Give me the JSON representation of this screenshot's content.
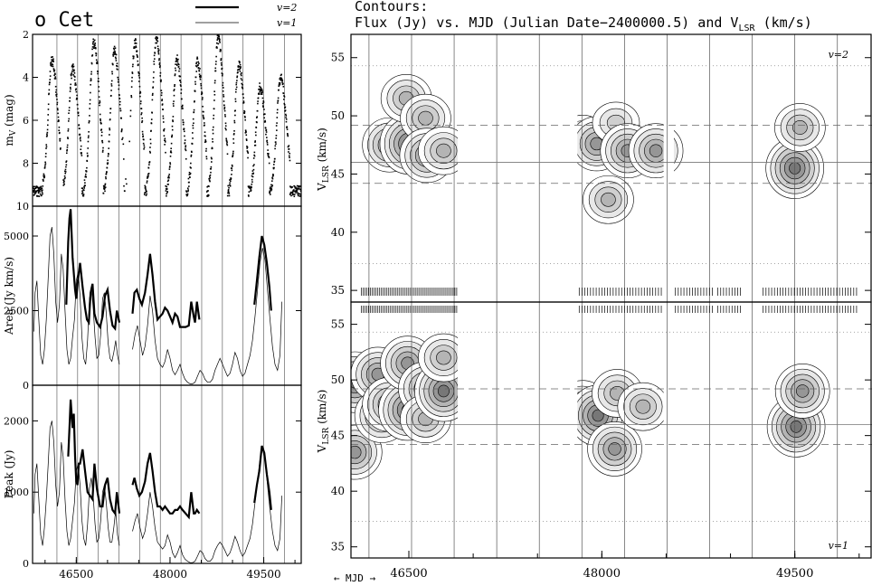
{
  "figure": {
    "star_name": "o Cet",
    "legend": [
      {
        "label": "v=2",
        "style": "thick"
      },
      {
        "label": "v=1",
        "style": "thin"
      }
    ],
    "right_title_line1": "Contours:",
    "right_title_line2": "Flux (Jy) vs. MJD (Julian  Date−2400000.5) and V",
    "right_title_sub": "LSR",
    "right_title_tail": " (km/s)",
    "mjd_label": "← MJD →",
    "panel_top_tag": "v=2",
    "panel_bottom_tag": "v=1"
  },
  "chart_data": [
    {
      "type": "scatter",
      "panel": "optical light curve",
      "ylabel": "m_V (mag)",
      "ylim": [
        10,
        2
      ],
      "yticks": [
        2,
        4,
        6,
        8,
        10
      ],
      "xlim": [
        45800,
        50100
      ],
      "xticks": [
        46500,
        48000,
        49500
      ],
      "maxima": [
        {
          "mjd": 46110,
          "mag": 3.2
        },
        {
          "mjd": 46440,
          "mag": 3.6
        },
        {
          "mjd": 46780,
          "mag": 2.4
        },
        {
          "mjd": 47110,
          "mag": 2.8
        },
        {
          "mjd": 47440,
          "mag": 2.4
        },
        {
          "mjd": 47780,
          "mag": 2.2
        },
        {
          "mjd": 48110,
          "mag": 3.2
        },
        {
          "mjd": 48440,
          "mag": 3.3
        },
        {
          "mjd": 48770,
          "mag": 2.2
        },
        {
          "mjd": 49100,
          "mag": 3.4
        },
        {
          "mjd": 49440,
          "mag": 4.5
        },
        {
          "mjd": 49770,
          "mag": 4.0
        }
      ],
      "minimum_mag": 9.3
    },
    {
      "type": "line",
      "panel": "integrated area",
      "ylabel": "Area (Jy km/s)",
      "ylim": [
        0,
        6000
      ],
      "yticks": [
        0,
        2500,
        5000
      ],
      "xlim": [
        45800,
        50100
      ],
      "series": [
        {
          "name": "v=2",
          "style": "thick",
          "x": [
            46340,
            46370,
            46390,
            46410,
            46440,
            46480,
            46500,
            46520,
            46560,
            46600,
            46640,
            46670,
            46700,
            46730,
            46760,
            46790,
            46830,
            46880,
            46920,
            46960,
            47000,
            47040,
            47080,
            47120,
            47150,
            47190
          ],
          "y": [
            2700,
            4800,
            5600,
            5900,
            4300,
            3200,
            2900,
            3400,
            4100,
            3300,
            2600,
            2200,
            2100,
            3100,
            3400,
            2400,
            2100,
            1950,
            2300,
            3000,
            3200,
            2500,
            2000,
            1900,
            2500,
            2100
          ]
        },
        {
          "name": "v=2",
          "style": "thick",
          "x": [
            47400,
            47430,
            47470,
            47510,
            47550,
            47600,
            47640,
            47680,
            47720,
            47760,
            47800,
            47840,
            47880,
            47920,
            47960,
            48000,
            48040,
            48080,
            48120,
            48160,
            48200,
            48250,
            48300,
            48340,
            48380,
            48400,
            48430,
            48470
          ],
          "y": [
            2400,
            3100,
            3200,
            2900,
            2700,
            3100,
            3700,
            4400,
            3700,
            2800,
            2200,
            2300,
            2400,
            2600,
            2500,
            2300,
            2100,
            2400,
            2300,
            1950,
            1950,
            1950,
            2000,
            2800,
            2300,
            2100,
            2800,
            2200
          ]
        },
        {
          "name": "v=2",
          "style": "thick",
          "x": [
            49350,
            49390,
            49430,
            49470,
            49510,
            49550,
            49590,
            49620
          ],
          "y": [
            2700,
            3500,
            4300,
            5000,
            4700,
            4100,
            3300,
            2500
          ]
        },
        {
          "name": "v=1",
          "style": "thin",
          "x": [
            45820,
            45840,
            45870,
            45900,
            45930,
            45960,
            45990,
            46020,
            46050,
            46080,
            46110,
            46140,
            46170,
            46200,
            46230,
            46260,
            46290,
            46320,
            46350,
            46380,
            46410,
            46440,
            46470,
            46500,
            46530,
            46560,
            46590,
            46620,
            46650,
            46680,
            46710,
            46740,
            46770,
            46800,
            46830,
            46860,
            46890,
            46920,
            46950,
            46980,
            47010,
            47040,
            47070,
            47100,
            47130,
            47160,
            47190
          ],
          "y": [
            1800,
            3100,
            3500,
            2200,
            1000,
            700,
            1200,
            2200,
            3600,
            5000,
            5300,
            4400,
            2800,
            2100,
            2700,
            4400,
            3900,
            2500,
            1200,
            700,
            900,
            1600,
            2200,
            3500,
            3800,
            3000,
            1600,
            900,
            700,
            1500,
            2900,
            3300,
            2600,
            1600,
            900,
            1000,
            1700,
            2900,
            3100,
            2400,
            1400,
            900,
            800,
            1100,
            1500,
            1000,
            700
          ]
        },
        {
          "name": "v=1",
          "style": "thin",
          "x": [
            47400,
            47440,
            47480,
            47520,
            47560,
            47600,
            47640,
            47680,
            47720,
            47760,
            47800,
            47840,
            47880,
            47920,
            47960,
            48000,
            48040,
            48080,
            48120,
            48160,
            48200,
            48240,
            48280,
            48320,
            48360,
            48400,
            48440,
            48480,
            48520,
            48560,
            48600,
            48640,
            48680,
            48720,
            48760,
            48800,
            48840,
            48880,
            48920,
            48960,
            49000,
            49040,
            49080,
            49120,
            49160,
            49200,
            49240,
            49280,
            49320,
            49360,
            49400,
            49440,
            49480,
            49520,
            49560,
            49600,
            49640,
            49680,
            49720,
            49760,
            49790
          ],
          "y": [
            1200,
            1700,
            2000,
            1500,
            1000,
            1300,
            2000,
            3000,
            2500,
            1500,
            900,
            700,
            600,
            800,
            1200,
            900,
            500,
            350,
            500,
            700,
            400,
            200,
            100,
            50,
            50,
            100,
            300,
            500,
            400,
            200,
            100,
            100,
            200,
            500,
            700,
            900,
            700,
            500,
            300,
            400,
            700,
            1100,
            900,
            500,
            300,
            400,
            700,
            1000,
            1500,
            2300,
            3200,
            4100,
            4600,
            4200,
            3200,
            2200,
            1300,
            700,
            500,
            1000,
            2800
          ]
        }
      ]
    },
    {
      "type": "line",
      "panel": "peak flux",
      "ylabel": "Peak (Jy)",
      "ylim": [
        0,
        2500
      ],
      "yticks": [
        0,
        1000,
        2000
      ],
      "xlim": [
        45800,
        50100
      ],
      "series": [
        {
          "name": "v=2",
          "style": "thick",
          "x": [
            46370,
            46390,
            46410,
            46440,
            46460,
            46480,
            46500,
            46520,
            46540,
            46560,
            46600,
            46640,
            46680,
            46720,
            46760,
            46790,
            46830,
            46880,
            46920,
            46960,
            47000,
            47040,
            47080,
            47120,
            47150,
            47190
          ],
          "y": [
            1500,
            1900,
            2300,
            1900,
            2100,
            1500,
            1150,
            1100,
            1400,
            1400,
            1600,
            1300,
            1000,
            950,
            900,
            1400,
            1050,
            800,
            800,
            1100,
            1200,
            900,
            750,
            700,
            1000,
            700
          ]
        },
        {
          "name": "v=2",
          "style": "thick",
          "x": [
            47400,
            47430,
            47470,
            47510,
            47550,
            47600,
            47640,
            47680,
            47720,
            47760,
            47800,
            47840,
            47880,
            47920,
            47960,
            48000,
            48040,
            48080,
            48120,
            48160,
            48200,
            48250,
            48300,
            48340,
            48380,
            48400,
            48430,
            48470
          ],
          "y": [
            1100,
            1200,
            1050,
            950,
            1000,
            1150,
            1400,
            1550,
            1300,
            1000,
            800,
            800,
            750,
            800,
            750,
            700,
            700,
            750,
            750,
            800,
            750,
            700,
            650,
            1000,
            700,
            700,
            750,
            700
          ]
        },
        {
          "name": "v=2",
          "style": "thick",
          "x": [
            49350,
            49390,
            49430,
            49470,
            49510,
            49550,
            49590,
            49620
          ],
          "y": [
            850,
            1100,
            1300,
            1650,
            1550,
            1250,
            1000,
            750
          ]
        },
        {
          "name": "v=1",
          "style": "thin",
          "x": [
            45820,
            45840,
            45870,
            45900,
            45930,
            45960,
            45990,
            46020,
            46050,
            46080,
            46110,
            46140,
            46170,
            46200,
            46230,
            46260,
            46290,
            46320,
            46350,
            46380,
            46410,
            46440,
            46470,
            46500,
            46530,
            46560,
            46590,
            46620,
            46650,
            46680,
            46710,
            46740,
            46770,
            46800,
            46830,
            46860,
            46890,
            46920,
            46950,
            46980,
            47010,
            47040,
            47070,
            47100,
            47130,
            47160,
            47190
          ],
          "y": [
            700,
            1250,
            1400,
            900,
            400,
            250,
            500,
            900,
            1400,
            1900,
            2000,
            1700,
            1100,
            800,
            1000,
            1700,
            1500,
            900,
            450,
            250,
            350,
            600,
            850,
            1300,
            1400,
            1100,
            600,
            350,
            250,
            550,
            1050,
            1200,
            950,
            550,
            300,
            350,
            600,
            1000,
            1100,
            850,
            500,
            300,
            300,
            500,
            750,
            400,
            250
          ]
        },
        {
          "name": "v=1",
          "style": "thin",
          "x": [
            47400,
            47440,
            47480,
            47520,
            47560,
            47600,
            47640,
            47680,
            47720,
            47760,
            47800,
            47840,
            47880,
            47920,
            47960,
            48000,
            48040,
            48080,
            48120,
            48160,
            48200,
            48240,
            48280,
            48320,
            48360,
            48400,
            48440,
            48480,
            48520,
            48560,
            48600,
            48640,
            48680,
            48720,
            48760,
            48800,
            48840,
            48880,
            48920,
            48960,
            49000,
            49040,
            49080,
            49120,
            49160,
            49200,
            49240,
            49280,
            49320,
            49360,
            49400,
            49440,
            49480,
            49520,
            49560,
            49600,
            49640,
            49680,
            49720,
            49760,
            49790
          ],
          "y": [
            450,
            600,
            700,
            500,
            350,
            450,
            700,
            1000,
            800,
            500,
            300,
            250,
            200,
            250,
            400,
            300,
            150,
            80,
            150,
            250,
            120,
            60,
            30,
            10,
            10,
            30,
            100,
            180,
            150,
            70,
            30,
            30,
            70,
            180,
            250,
            300,
            250,
            180,
            100,
            150,
            250,
            380,
            300,
            180,
            100,
            150,
            250,
            350,
            550,
            850,
            1150,
            1450,
            1600,
            1450,
            1100,
            750,
            450,
            250,
            180,
            350,
            950
          ]
        }
      ]
    },
    {
      "type": "heatmap",
      "panel": "v=2 contours",
      "ylabel": "V_LSR (km/s)",
      "ylim": [
        34,
        57
      ],
      "yticks": [
        35,
        40,
        45,
        50,
        55
      ],
      "xlim": [
        46050,
        50100
      ],
      "xticks": [
        46500,
        48000,
        49500
      ],
      "reference_lines": {
        "dashed": [
          44.2,
          49.2
        ],
        "solid": [
          46.0
        ],
        "dotted": [
          37.3,
          54.3
        ]
      },
      "components": [
        {
          "mjd": 46350,
          "v": 47.5,
          "amp": 4
        },
        {
          "mjd": 46500,
          "v": 47.6,
          "amp": 5
        },
        {
          "mjd": 46480,
          "v": 51.5,
          "amp": 3
        },
        {
          "mjd": 46630,
          "v": 49.8,
          "amp": 3
        },
        {
          "mjd": 46640,
          "v": 46.6,
          "amp": 4
        },
        {
          "mjd": 46770,
          "v": 47.0,
          "amp": 3
        },
        {
          "mjd": 47850,
          "v": 48.0,
          "amp": 3
        },
        {
          "mjd": 47960,
          "v": 47.6,
          "amp": 4
        },
        {
          "mjd": 48050,
          "v": 42.8,
          "amp": 3
        },
        {
          "mjd": 48110,
          "v": 49.4,
          "amp": 2
        },
        {
          "mjd": 48200,
          "v": 47.0,
          "amp": 4
        },
        {
          "mjd": 48420,
          "v": 47.0,
          "amp": 4
        },
        {
          "mjd": 49500,
          "v": 45.5,
          "amp": 5
        },
        {
          "mjd": 49540,
          "v": 49.0,
          "amp": 3
        }
      ]
    },
    {
      "type": "heatmap",
      "panel": "v=1 contours",
      "ylabel": "V_LSR (km/s)",
      "ylim": [
        34,
        57
      ],
      "yticks": [
        35,
        40,
        45,
        50,
        55
      ],
      "xlim": [
        46050,
        50100
      ],
      "xticks": [
        46500,
        48000,
        49500
      ],
      "reference_lines": {
        "dashed": [
          44.2,
          49.2
        ],
        "solid": [
          46.0
        ],
        "dotted": [
          37.3,
          54.3
        ]
      },
      "components": [
        {
          "mjd": 46080,
          "v": 49.8,
          "amp": 5
        },
        {
          "mjd": 46080,
          "v": 43.5,
          "amp": 4
        },
        {
          "mjd": 46260,
          "v": 50.5,
          "amp": 4
        },
        {
          "mjd": 46290,
          "v": 46.8,
          "amp": 4
        },
        {
          "mjd": 46350,
          "v": 47.8,
          "amp": 4
        },
        {
          "mjd": 46490,
          "v": 47.3,
          "amp": 5
        },
        {
          "mjd": 46490,
          "v": 51.5,
          "amp": 4
        },
        {
          "mjd": 46630,
          "v": 49.2,
          "amp": 4
        },
        {
          "mjd": 46630,
          "v": 46.5,
          "amp": 3
        },
        {
          "mjd": 46770,
          "v": 49.0,
          "amp": 5
        },
        {
          "mjd": 46770,
          "v": 52.0,
          "amp": 3
        },
        {
          "mjd": 47850,
          "v": 47.8,
          "amp": 3
        },
        {
          "mjd": 47970,
          "v": 46.8,
          "amp": 5
        },
        {
          "mjd": 48100,
          "v": 43.8,
          "amp": 4
        },
        {
          "mjd": 48120,
          "v": 48.8,
          "amp": 3
        },
        {
          "mjd": 48320,
          "v": 47.6,
          "amp": 3
        },
        {
          "mjd": 49510,
          "v": 45.8,
          "amp": 5
        },
        {
          "mjd": 49560,
          "v": 49.0,
          "amp": 4
        }
      ]
    }
  ]
}
